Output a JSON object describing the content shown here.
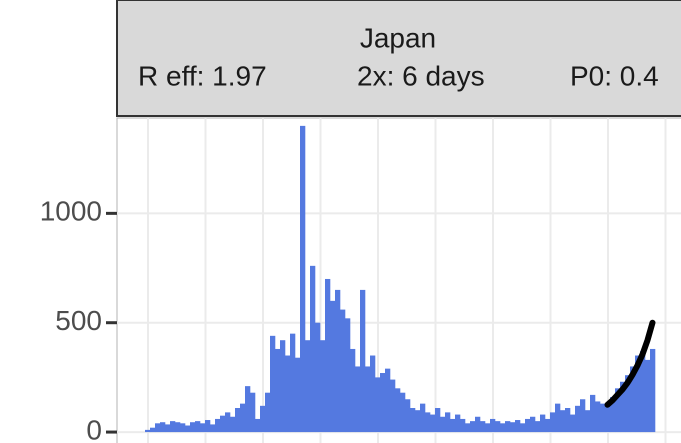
{
  "chart_data": {
    "type": "bar",
    "title": "Japan",
    "annotations": [
      "R eff: 1.97",
      "2x: 6 days",
      "P0: 0.4"
    ],
    "values": [
      10,
      20,
      40,
      45,
      35,
      50,
      45,
      40,
      30,
      45,
      50,
      40,
      55,
      35,
      60,
      75,
      90,
      70,
      110,
      130,
      210,
      180,
      60,
      120,
      180,
      440,
      380,
      420,
      350,
      450,
      340,
      1400,
      420,
      760,
      500,
      420,
      700,
      600,
      650,
      560,
      520,
      380,
      300,
      650,
      300,
      350,
      250,
      270,
      290,
      240,
      200,
      180,
      150,
      110,
      100,
      130,
      90,
      80,
      110,
      70,
      90,
      60,
      80,
      60,
      40,
      50,
      70,
      50,
      40,
      60,
      50,
      40,
      50,
      45,
      55,
      40,
      60,
      70,
      50,
      80,
      60,
      90,
      130,
      100,
      110,
      80,
      120,
      150,
      100,
      170,
      140,
      130,
      120,
      160,
      200,
      230,
      260,
      300,
      350,
      370,
      330,
      380
    ],
    "color": "#5479e0",
    "fit": {
      "x": [
        92,
        93,
        94,
        95,
        96,
        97,
        98,
        99,
        100,
        101
      ],
      "values": [
        125,
        145,
        170,
        195,
        225,
        262,
        305,
        355,
        420,
        500
      ],
      "color": "#000000"
    },
    "ylim": [
      -50,
      1436
    ],
    "yticks": [
      0,
      500,
      1000
    ],
    "grid": true
  }
}
